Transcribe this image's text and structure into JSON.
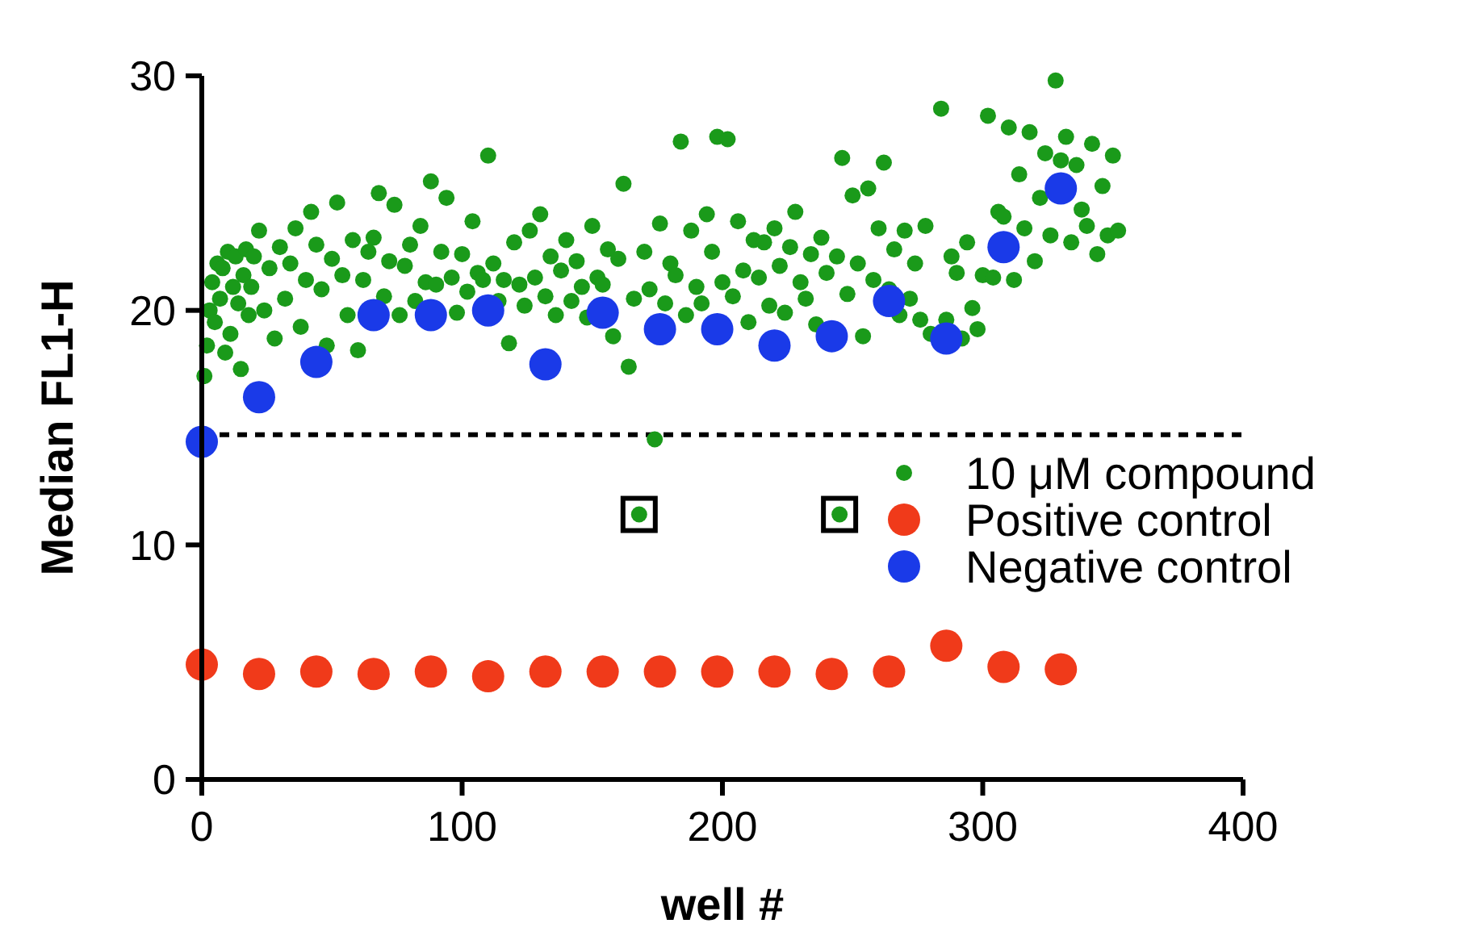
{
  "chart_data": {
    "type": "scatter",
    "xlabel": "well #",
    "ylabel": "Median FL1-H",
    "xlim": [
      0,
      400
    ],
    "xticks": [
      0,
      100,
      200,
      300,
      400
    ],
    "ylim": [
      0,
      30
    ],
    "yticks": [
      0,
      10,
      20,
      30
    ],
    "grid": false,
    "legend": "right",
    "marker": "circle",
    "ref_lines": [
      {
        "axis": "y",
        "value": 14.7,
        "line_style": "dotted",
        "color": "#000000"
      }
    ],
    "series": [
      {
        "name": "10 μM compound",
        "color": "#1a9a1a",
        "x": [
          1,
          2,
          3,
          4,
          5,
          6,
          7,
          8,
          9,
          10,
          11,
          12,
          13,
          14,
          15,
          16,
          17,
          18,
          19,
          20,
          22,
          24,
          26,
          28,
          30,
          32,
          34,
          36,
          38,
          40,
          42,
          44,
          46,
          48,
          50,
          52,
          54,
          56,
          58,
          60,
          62,
          64,
          66,
          68,
          70,
          72,
          74,
          76,
          78,
          80,
          82,
          84,
          86,
          88,
          90,
          92,
          94,
          96,
          98,
          100,
          102,
          104,
          106,
          108,
          110,
          112,
          114,
          116,
          118,
          120,
          122,
          124,
          126,
          128,
          130,
          132,
          134,
          136,
          138,
          140,
          142,
          144,
          146,
          148,
          150,
          152,
          154,
          156,
          158,
          160,
          162,
          164,
          166,
          168,
          170,
          172,
          174,
          176,
          178,
          180,
          182,
          184,
          186,
          188,
          190,
          192,
          194,
          196,
          198,
          200,
          202,
          204,
          206,
          208,
          210,
          212,
          214,
          216,
          218,
          220,
          222,
          224,
          226,
          228,
          230,
          232,
          234,
          236,
          238,
          240,
          244,
          245,
          246,
          248,
          250,
          252,
          254,
          256,
          258,
          260,
          262,
          264,
          266,
          268,
          270,
          272,
          274,
          276,
          278,
          280,
          284,
          286,
          288,
          290,
          292,
          294,
          296,
          298,
          300,
          302,
          304,
          306,
          308,
          310,
          312,
          314,
          316,
          318,
          320,
          322,
          324,
          326,
          328,
          330,
          332,
          334,
          336,
          338,
          340,
          342,
          344,
          346,
          348,
          350,
          352
        ],
        "values": [
          17.2,
          18.5,
          20,
          21.2,
          19.5,
          22,
          20.5,
          21.8,
          18.2,
          22.5,
          19,
          21,
          22.3,
          20.3,
          17.5,
          21.5,
          22.6,
          19.8,
          21,
          22.3,
          23.4,
          20,
          21.8,
          18.8,
          22.7,
          20.5,
          22,
          23.5,
          19.3,
          21.3,
          24.2,
          22.8,
          20.9,
          18.5,
          22.2,
          24.6,
          21.5,
          19.8,
          23,
          18.3,
          21.3,
          22.5,
          23.1,
          25,
          20.6,
          22.1,
          24.5,
          19.8,
          21.9,
          22.8,
          20.4,
          23.6,
          21.2,
          25.5,
          21.1,
          22.5,
          24.8,
          21.4,
          19.9,
          22.4,
          20.8,
          23.8,
          21.6,
          21.3,
          26.6,
          22,
          20.4,
          21.3,
          18.6,
          22.9,
          21.1,
          20.2,
          23.4,
          21.4,
          24.1,
          20.6,
          22.3,
          19.8,
          21.7,
          23,
          20.4,
          22.1,
          21,
          19.7,
          23.6,
          21.4,
          21.1,
          22.6,
          18.9,
          22.2,
          25.4,
          17.6,
          20.5,
          11.3,
          22.5,
          20.9,
          14.5,
          23.7,
          20.3,
          22,
          21.5,
          27.2,
          19.8,
          23.4,
          21,
          20.3,
          24.1,
          22.5,
          27.4,
          21.2,
          27.3,
          20.6,
          23.8,
          21.7,
          19.5,
          23,
          21.4,
          22.9,
          20.2,
          23.5,
          21.9,
          19.9,
          22.7,
          24.2,
          21.2,
          20.5,
          22.4,
          19.4,
          23.1,
          21.6,
          22.3,
          11.3,
          26.5,
          20.7,
          24.9,
          22,
          18.9,
          25.2,
          21.3,
          23.5,
          26.3,
          20.9,
          22.6,
          19.8,
          23.4,
          20.5,
          22,
          19.6,
          23.6,
          19,
          28.6,
          19.6,
          22.3,
          21.6,
          18.8,
          22.9,
          20.1,
          19.2,
          21.5,
          28.3,
          21.4,
          24.2,
          24,
          27.8,
          21.3,
          25.8,
          23.5,
          27.6,
          22.1,
          24.8,
          26.7,
          23.2,
          29.8,
          26.4,
          27.4,
          22.9,
          26.2,
          24.3,
          23.6,
          27.1,
          22.4,
          25.3,
          23.2,
          26.6,
          23.4
        ]
      },
      {
        "name": "Positive control",
        "color": "#f03a1a",
        "x": [
          0,
          22,
          44,
          66,
          88,
          110,
          132,
          154,
          176,
          198,
          220,
          242,
          264,
          286,
          308,
          330
        ],
        "values": [
          4.9,
          4.5,
          4.6,
          4.5,
          4.6,
          4.4,
          4.6,
          4.6,
          4.6,
          4.6,
          4.6,
          4.5,
          4.6,
          5.7,
          4.8,
          4.7
        ]
      },
      {
        "name": "Negative control",
        "color": "#1a3ae8",
        "x": [
          0,
          22,
          44,
          66,
          88,
          110,
          132,
          154,
          176,
          198,
          220,
          242,
          264,
          286,
          308,
          330
        ],
        "values": [
          14.4,
          16.3,
          17.8,
          19.8,
          19.8,
          20,
          17.7,
          19.9,
          19.2,
          19.2,
          18.5,
          18.9,
          20.4,
          18.8,
          22.7,
          25.2
        ]
      }
    ]
  }
}
